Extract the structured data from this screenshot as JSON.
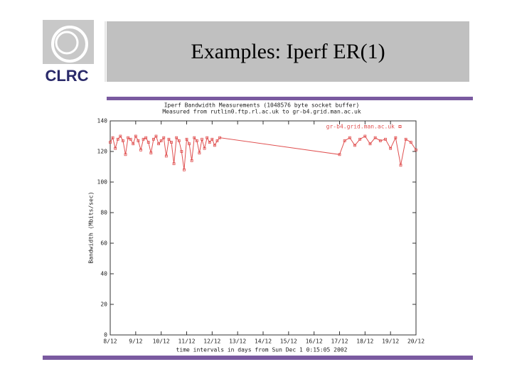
{
  "slide": {
    "title": "Examples: Iperf ER(1)",
    "logo": "CLRC"
  },
  "chart_data": {
    "type": "line",
    "title": "Iperf Bandwidth Measurements (1048576 byte socket buffer)",
    "subtitle": "Measured from rutlin0.ftp.rl.ac.uk to gr-b4.grid.man.ac.uk",
    "x_label": "time intervals in days from Sun Dec 1 0:15:05 2002",
    "y_label": "Bandwidth (Mbits/sec)",
    "x": [
      8.0,
      8.1,
      8.2,
      8.3,
      8.4,
      8.5,
      8.6,
      8.7,
      8.8,
      8.9,
      9.0,
      9.1,
      9.2,
      9.3,
      9.4,
      9.5,
      9.6,
      9.7,
      9.8,
      9.9,
      10.0,
      10.1,
      10.2,
      10.3,
      10.4,
      10.5,
      10.6,
      10.7,
      10.8,
      10.9,
      11.0,
      11.1,
      11.2,
      11.3,
      11.4,
      11.5,
      11.6,
      11.7,
      11.8,
      11.9,
      12.0,
      12.1,
      12.2,
      12.3,
      17.0,
      17.2,
      17.4,
      17.6,
      17.8,
      18.0,
      18.2,
      18.4,
      18.6,
      18.8,
      19.0,
      19.2,
      19.4,
      19.6,
      19.8,
      20.0
    ],
    "series": [
      {
        "name": "gr-b4.grid.man.ac.uk",
        "color": "#e05050",
        "values": [
          126,
          129,
          122,
          128,
          130,
          127,
          118,
          129,
          128,
          125,
          130,
          127,
          121,
          128,
          129,
          126,
          119,
          128,
          130,
          125,
          127,
          129,
          117,
          128,
          126,
          112,
          129,
          127,
          120,
          108,
          128,
          125,
          114,
          129,
          127,
          119,
          128,
          122,
          129,
          126,
          128,
          124,
          127,
          129,
          118,
          127,
          129,
          124,
          128,
          130,
          125,
          129,
          127,
          128,
          122,
          129,
          111,
          128,
          126,
          121
        ]
      }
    ],
    "xlim": [
      8,
      20
    ],
    "xticks": [
      {
        "value": 8,
        "label": "8/12"
      },
      {
        "value": 9,
        "label": "9/12"
      },
      {
        "value": 10,
        "label": "10/12"
      },
      {
        "value": 11,
        "label": "11/12"
      },
      {
        "value": 12,
        "label": "12/12"
      },
      {
        "value": 13,
        "label": "13/12"
      },
      {
        "value": 14,
        "label": "14/12"
      },
      {
        "value": 15,
        "label": "15/12"
      },
      {
        "value": 16,
        "label": "16/12"
      },
      {
        "value": 17,
        "label": "17/12"
      },
      {
        "value": 18,
        "label": "18/12"
      },
      {
        "value": 19,
        "label": "19/12"
      },
      {
        "value": 20,
        "label": "20/12"
      }
    ],
    "ylim": [
      0,
      140
    ],
    "yticks": [
      0,
      20,
      40,
      60,
      80,
      100,
      120,
      140
    ],
    "legend": "top-right"
  }
}
